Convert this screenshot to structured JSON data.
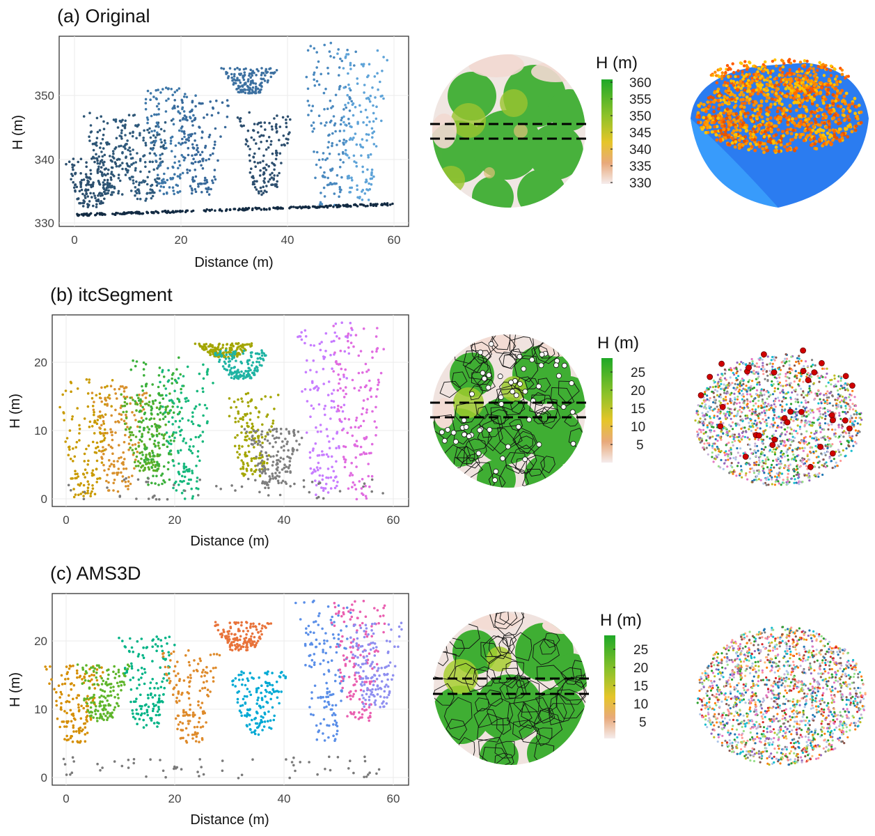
{
  "figure": {
    "panels": [
      {
        "id": "a",
        "title": "(a) Original",
        "xlabel": "Distance (m)",
        "ylabel": "H (m)",
        "xticks": [
          "0",
          "20",
          "40",
          "60"
        ],
        "yticks": [
          "330",
          "340",
          "350"
        ],
        "legend_title": "H (m)",
        "legend_ticks": [
          "360",
          "355",
          "350",
          "345",
          "340",
          "335",
          "330"
        ]
      },
      {
        "id": "b",
        "title": "(b) itcSegment",
        "xlabel": "Distance (m)",
        "ylabel": "H (m)",
        "xticks": [
          "0",
          "20",
          "40",
          "60"
        ],
        "yticks": [
          "0",
          "10",
          "20"
        ],
        "legend_title": "H (m)",
        "legend_ticks": [
          "25",
          "20",
          "15",
          "10",
          "5"
        ]
      },
      {
        "id": "c",
        "title": "(c) AMS3D",
        "xlabel": "Distance (m)",
        "ylabel": "H (m)",
        "xticks": [
          "0",
          "20",
          "40",
          "60"
        ],
        "yticks": [
          "0",
          "10",
          "20"
        ],
        "legend_title": "H (m)",
        "legend_ticks": [
          "25",
          "20",
          "15",
          "10",
          "5"
        ]
      }
    ]
  },
  "chart_data": [
    {
      "type": "scatter",
      "title": "(a) Original",
      "xlabel": "Distance (m)",
      "ylabel": "H (m)",
      "xlim": [
        -3,
        63
      ],
      "ylim": [
        329,
        359
      ],
      "grid": true,
      "crowns": [
        {
          "x": 3,
          "y0": 332,
          "y1": 340,
          "color": "#2c4f6e"
        },
        {
          "x": 7,
          "y0": 334,
          "y1": 347,
          "color": "#2e5676"
        },
        {
          "x": 13,
          "y0": 333,
          "y1": 346,
          "color": "#2f5b7e"
        },
        {
          "x": 18,
          "y0": 334,
          "y1": 351,
          "color": "#3e77a8"
        },
        {
          "x": 24,
          "y0": 334,
          "y1": 349,
          "color": "#38699a"
        },
        {
          "x": 36,
          "y0": 334,
          "y1": 347,
          "color": "#2d4f6f"
        },
        {
          "x": 33,
          "y0": 350,
          "y1": 354,
          "color": "#3c70a0"
        },
        {
          "x": 48,
          "y0": 332,
          "y1": 358,
          "color": "#4a89bf"
        },
        {
          "x": 54,
          "y0": 333,
          "y1": 357,
          "color": "#5ea3d8"
        }
      ],
      "ground": {
        "x": [
          0,
          60
        ],
        "y": [
          330.8,
          332.5
        ],
        "color": "#132b43"
      }
    },
    {
      "type": "scatter",
      "title": "(b) itcSegment",
      "xlabel": "Distance (m)",
      "ylabel": "H (m)",
      "xlim": [
        -1,
        63
      ],
      "ylim": [
        -1,
        26
      ],
      "grid": true,
      "segments": [
        {
          "x": 5,
          "y0": 0,
          "y1": 17,
          "color": "#c99a00"
        },
        {
          "x": 11,
          "y0": 1,
          "y1": 16,
          "color": "#d8902c"
        },
        {
          "x": 16,
          "y0": 4,
          "y1": 15,
          "color": "#5aae27"
        },
        {
          "x": 18,
          "y0": 2,
          "y1": 20,
          "color": "#3bb03b"
        },
        {
          "x": 23,
          "y0": 0,
          "y1": 19,
          "color": "#18b87d"
        },
        {
          "x": 30,
          "y0": 20,
          "y1": 22,
          "color": "#a3a500"
        },
        {
          "x": 33,
          "y0": 17,
          "y1": 21,
          "color": "#1fb3a3"
        },
        {
          "x": 35,
          "y0": 3,
          "y1": 15,
          "color": "#a3a500"
        },
        {
          "x": 39,
          "y0": 2,
          "y1": 10,
          "color": "#7f7f7f"
        },
        {
          "x": 48,
          "y0": 0,
          "y1": 25,
          "color": "#c77cff"
        },
        {
          "x": 54,
          "y0": 0,
          "y1": 25,
          "color": "#e06be0"
        }
      ]
    },
    {
      "type": "scatter",
      "title": "(c) AMS3D",
      "xlabel": "Distance (m)",
      "ylabel": "H (m)",
      "xlim": [
        -1,
        63
      ],
      "ylim": [
        -1,
        26
      ],
      "grid": true,
      "segments": [
        {
          "x": 3,
          "y0": 5,
          "y1": 16,
          "color": "#d58e00"
        },
        {
          "x": 8,
          "y0": 8,
          "y1": 16,
          "color": "#5eb52a"
        },
        {
          "x": 16,
          "y0": 7,
          "y1": 20,
          "color": "#00b386"
        },
        {
          "x": 24,
          "y0": 5,
          "y1": 18,
          "color": "#de8a2a"
        },
        {
          "x": 33,
          "y0": 18,
          "y1": 22,
          "color": "#e8733a"
        },
        {
          "x": 36,
          "y0": 6,
          "y1": 15,
          "color": "#00a9d4"
        },
        {
          "x": 48,
          "y0": 5,
          "y1": 25,
          "color": "#5b8fe8"
        },
        {
          "x": 54,
          "y0": 8,
          "y1": 25,
          "color": "#ea5fb0"
        },
        {
          "x": 57,
          "y0": 10,
          "y1": 22,
          "color": "#8e8ef0"
        }
      ]
    }
  ]
}
